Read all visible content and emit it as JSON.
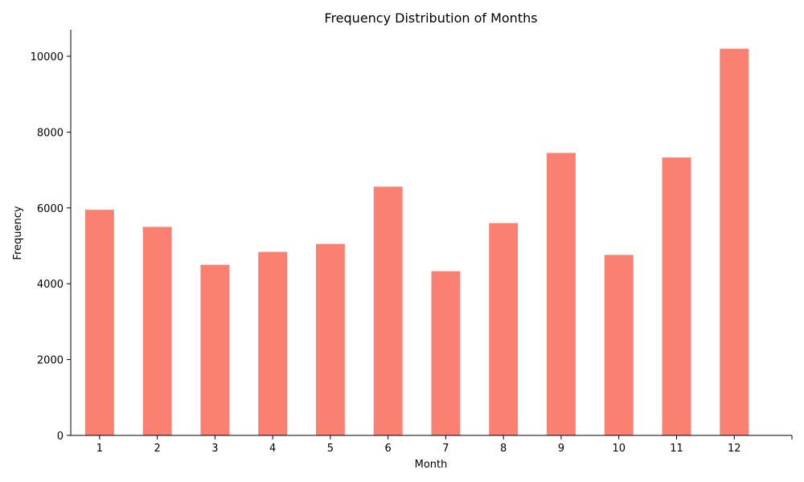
{
  "chart_data": {
    "type": "bar",
    "title": "Frequency Distribution of Months",
    "xlabel": "Month",
    "ylabel": "Frequency",
    "categories": [
      "1",
      "2",
      "3",
      "4",
      "5",
      "6",
      "7",
      "8",
      "9",
      "10",
      "11",
      "12"
    ],
    "values": [
      5950,
      5500,
      4500,
      4840,
      5050,
      6560,
      4330,
      5600,
      7450,
      4760,
      7330,
      10200
    ],
    "ylim": [
      0,
      10700
    ],
    "yticks": [
      0,
      2000,
      4000,
      6000,
      8000,
      10000
    ],
    "grid": false,
    "legend": "none",
    "bar_color": "#fa8072"
  }
}
